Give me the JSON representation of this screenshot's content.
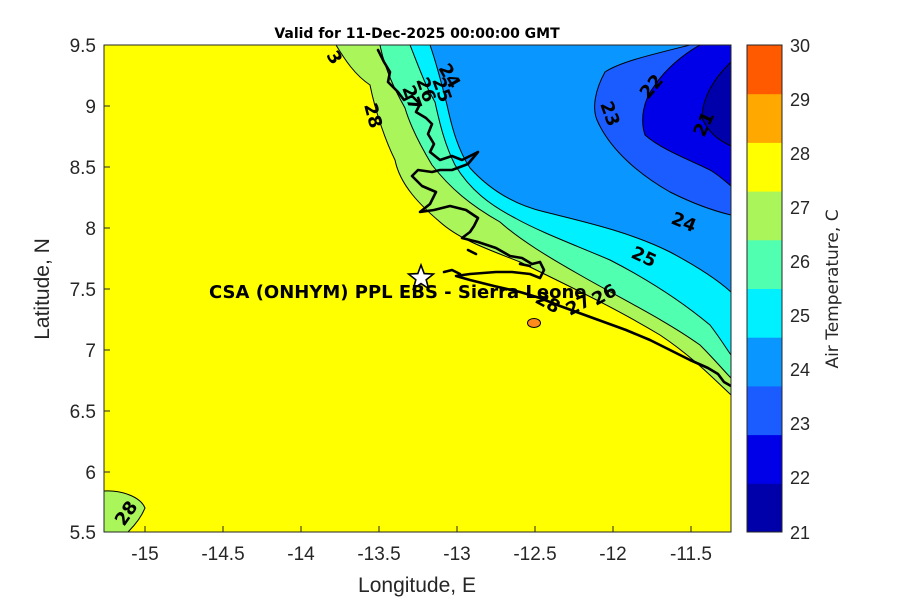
{
  "title": "Valid for 11-Dec-2025 00:00:00 GMT",
  "xlabel": "Longitude, E",
  "ylabel": "Latitude, N",
  "x_ticks": [
    "-15",
    "-14.5",
    "-14",
    "-13.5",
    "-13",
    "-12.5",
    "-12",
    "-11.5"
  ],
  "y_ticks": [
    "9.5",
    "9",
    "8.5",
    "8",
    "7.5",
    "7",
    "6.5",
    "6",
    "5.5"
  ],
  "x_range": [
    -15.25,
    -11.25
  ],
  "y_range": [
    5.5,
    9.5
  ],
  "colorbar": {
    "label": "Air Temperature, C",
    "ticks": [
      "30",
      "29",
      "28",
      "27",
      "26",
      "25",
      "24",
      "23",
      "22",
      "21"
    ],
    "colors": [
      "#0000aa",
      "#0000e8",
      "#1a5cff",
      "#0a96ff",
      "#00f0ff",
      "#50ffb0",
      "#aaf55a",
      "#ffff00",
      "#ffa800",
      "#ff5a00"
    ]
  },
  "contour_labels": [
    "28",
    "27",
    "26",
    "25",
    "24",
    "23",
    "22",
    "21",
    "24",
    "25",
    "27",
    "26",
    "28",
    "28",
    "3"
  ],
  "site": {
    "label": "CSA (ONHYM) PPL EBS  - Sierra Leone",
    "lon": -13.23,
    "lat": 7.6,
    "marker": "star-icon"
  }
}
